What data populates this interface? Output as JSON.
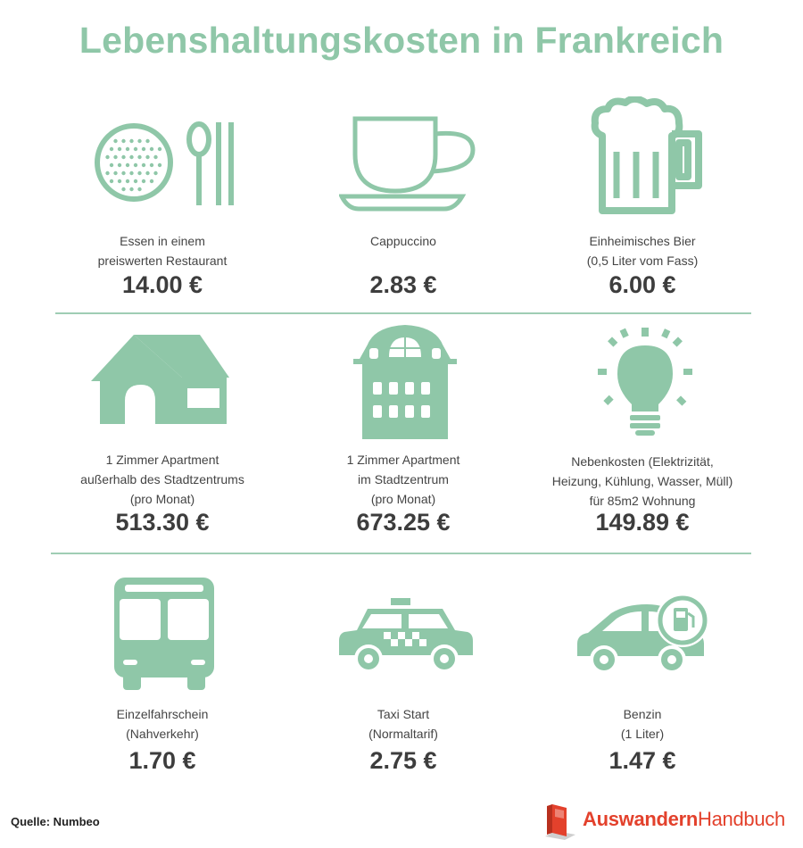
{
  "title": "Lebenshaltungskosten in Frankreich",
  "accent_color": "#8fc7a8",
  "items": [
    {
      "icon": "restaurant-icon",
      "label_lines": [
        "Essen in einem",
        "preiswerten Restaurant"
      ],
      "price": "14.00 €"
    },
    {
      "icon": "coffee-cup-icon",
      "label_lines": [
        "Cappuccino"
      ],
      "price": "2.83 €"
    },
    {
      "icon": "beer-mug-icon",
      "label_lines": [
        "Einheimisches Bier",
        "(0,5 Liter vom Fass)"
      ],
      "price": "6.00 €"
    },
    {
      "icon": "house-icon",
      "label_lines": [
        "1 Zimmer Apartment",
        "außerhalb des Stadtzentrums",
        "(pro Monat)"
      ],
      "price": "513.30 €"
    },
    {
      "icon": "city-building-icon",
      "label_lines": [
        "1 Zimmer Apartment",
        "im Stadtzentrum",
        "(pro Monat)"
      ],
      "price": "673.25 €"
    },
    {
      "icon": "light-bulb-icon",
      "label_lines": [
        "Nebenkosten (Elektrizität,",
        "Heizung, Kühlung, Wasser, Müll)",
        "für 85m2 Wohnung"
      ],
      "price": "149.89 €"
    },
    {
      "icon": "bus-icon",
      "label_lines": [
        "Einzelfahrschein",
        "(Nahverkehr)"
      ],
      "price": "1.70 €"
    },
    {
      "icon": "taxi-icon",
      "label_lines": [
        "Taxi Start",
        "(Normaltarif)"
      ],
      "price": "2.75 €"
    },
    {
      "icon": "car-fuel-icon",
      "label_lines": [
        "Benzin",
        "(1 Liter)"
      ],
      "price": "1.47 €"
    }
  ],
  "source": "Quelle: Numbeo",
  "brand": {
    "strong": "Auswandern",
    "light": "Handbuch",
    "icon": "book-logo-icon",
    "color": "#e3412c"
  }
}
